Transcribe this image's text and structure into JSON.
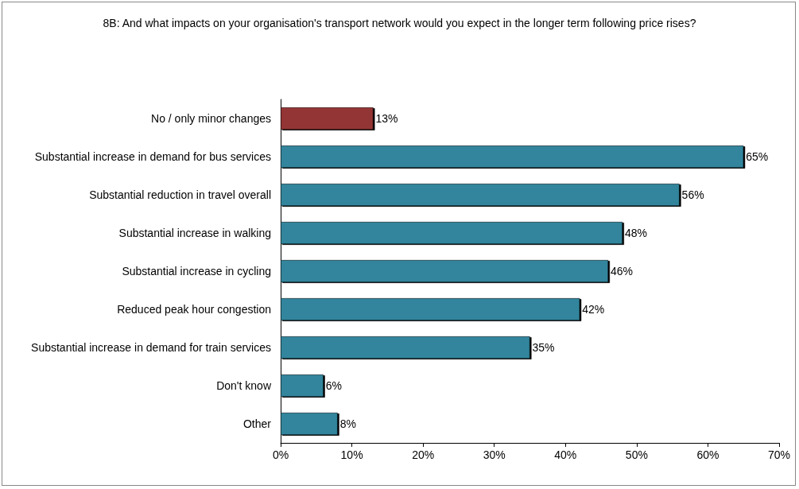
{
  "chart_data": {
    "type": "bar",
    "orientation": "horizontal",
    "title": "8B: And what impacts on your organisation's transport network would you expect in the longer term following price rises?",
    "categories": [
      "No / only minor changes",
      "Substantial increase in demand for bus services",
      "Substantial reduction in travel overall",
      "Substantial increase in walking",
      "Substantial increase in cycling",
      "Reduced peak hour congestion",
      "Substantial increase in demand for train services",
      "Don't know",
      "Other"
    ],
    "values": [
      13,
      65,
      56,
      48,
      46,
      42,
      35,
      6,
      8
    ],
    "colors": [
      "#943634",
      "#31859c",
      "#31859c",
      "#31859c",
      "#31859c",
      "#31859c",
      "#31859c",
      "#31859c",
      "#31859c"
    ],
    "value_labels": [
      "13%",
      "65%",
      "56%",
      "48%",
      "46%",
      "42%",
      "35%",
      "6%",
      "8%"
    ],
    "xlim": [
      0,
      70
    ],
    "xticks": [
      {
        "value": 0,
        "label": "0%"
      },
      {
        "value": 10,
        "label": "10%"
      },
      {
        "value": 20,
        "label": "20%"
      },
      {
        "value": 30,
        "label": "30%"
      },
      {
        "value": 40,
        "label": "40%"
      },
      {
        "value": 50,
        "label": "50%"
      },
      {
        "value": 60,
        "label": "60%"
      },
      {
        "value": 70,
        "label": "70%"
      }
    ],
    "grid": false
  }
}
